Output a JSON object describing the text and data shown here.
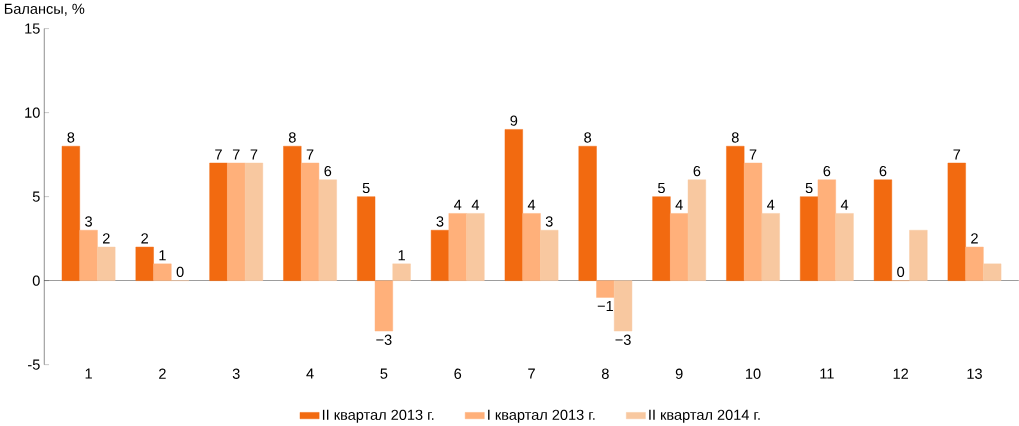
{
  "chart_data": {
    "type": "bar",
    "ylabel": "Балансы, %",
    "categories": [
      "1",
      "2",
      "3",
      "4",
      "5",
      "6",
      "7",
      "8",
      "9",
      "10",
      "11",
      "12",
      "13"
    ],
    "series": [
      {
        "name": "II квартал 2013 г.",
        "color": "#f26a10",
        "values": [
          8,
          2,
          7,
          8,
          5,
          3,
          9,
          8,
          5,
          8,
          5,
          6,
          7
        ],
        "value_labels": [
          "8",
          "2",
          "7",
          "8",
          "5",
          "3",
          "9",
          "8",
          "5",
          "8",
          "5",
          "6",
          "7"
        ]
      },
      {
        "name": "I квартал 2013 г.",
        "color": "#ffb07a",
        "values": [
          3,
          1,
          7,
          7,
          -3,
          4,
          4,
          -1,
          4,
          7,
          6,
          0,
          2
        ],
        "value_labels": [
          "3",
          "1",
          "7",
          "7",
          "−3",
          "4",
          "4",
          "−1",
          "4",
          "7",
          "6",
          "0",
          "2"
        ]
      },
      {
        "name": "II квартал 2014 г.",
        "color": "#f8c8a0",
        "values": [
          2,
          0,
          7,
          6,
          1,
          4,
          3,
          -3,
          6,
          4,
          4,
          3,
          1
        ],
        "value_labels": [
          "2",
          "0",
          "7",
          "6",
          "1",
          "4",
          "3",
          "−3",
          "6",
          "4",
          "4",
          null,
          null
        ]
      }
    ],
    "ylim": [
      -5,
      15
    ],
    "yticks": [
      -5,
      0,
      5,
      10,
      15
    ],
    "legend": "bottom"
  }
}
